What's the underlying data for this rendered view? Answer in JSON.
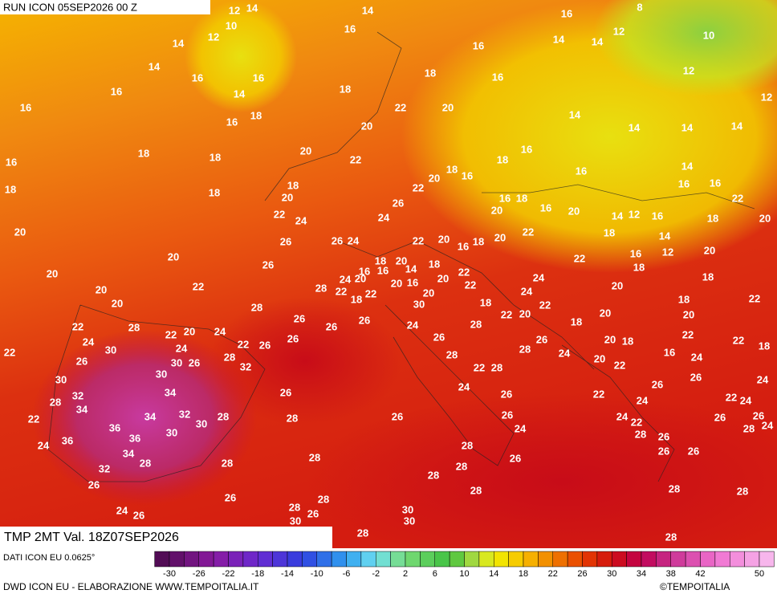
{
  "header": {
    "run": "RUN ICON 05SEP2026 00 Z",
    "field": "TMP 2MT Val. 18Z07SEP2026"
  },
  "footer": {
    "source": "DATI ICON EU 0.0625°",
    "credit": "DWD ICON EU - ELABORAZIONE WWW.TEMPOITALIA.IT",
    "copyright": "©TEMPOITALIA"
  },
  "colorbar": {
    "ticks": [
      -30,
      -26,
      -22,
      -18,
      -14,
      -10,
      -6,
      -2,
      2,
      6,
      10,
      14,
      18,
      22,
      26,
      30,
      34,
      38,
      42,
      50
    ]
  },
  "map": {
    "labels": [
      12,
      14,
      10,
      14,
      16,
      8,
      16,
      10,
      12,
      14,
      12,
      14,
      14,
      16,
      14,
      16,
      16,
      18,
      16,
      12,
      16,
      14,
      18,
      16,
      22,
      20,
      14,
      12,
      16,
      18,
      20,
      14,
      14,
      14,
      18,
      18,
      20,
      16,
      18,
      16,
      22,
      16,
      14,
      18,
      18,
      18,
      18,
      16,
      20,
      22,
      16,
      16,
      20,
      16,
      18,
      22,
      26,
      22,
      24,
      24,
      20,
      16,
      20,
      14,
      12,
      16,
      18,
      20,
      20,
      26,
      26,
      24,
      22,
      20,
      16,
      18,
      20,
      22,
      18,
      14,
      20,
      26,
      18,
      20,
      18,
      16,
      16,
      14,
      22,
      16,
      12,
      20,
      20,
      18,
      22,
      20,
      28,
      24,
      20,
      20,
      22,
      24,
      22,
      18,
      22,
      20,
      16,
      20,
      22,
      24,
      20,
      18,
      20,
      28,
      30,
      18,
      22,
      20,
      22,
      20,
      18,
      22,
      22,
      28,
      22,
      20,
      24,
      26,
      26,
      26,
      24,
      28,
      18,
      20,
      24,
      24,
      22,
      22,
      26,
      26,
      26,
      28,
      26,
      20,
      18,
      22,
      22,
      18,
      26,
      30,
      30,
      26,
      28,
      32,
      24,
      20,
      22,
      16,
      24,
      30,
      30,
      28,
      22,
      28,
      26,
      24,
      26,
      28,
      32,
      34,
      26,
      24,
      26,
      22,
      24,
      22,
      24,
      34,
      32,
      22,
      34,
      28,
      28,
      26,
      26,
      24,
      26,
      26,
      36,
      36,
      30,
      30,
      24,
      22,
      28,
      24,
      24,
      36,
      34,
      28,
      26,
      28,
      26,
      26,
      32,
      28,
      28,
      28,
      26,
      28,
      28,
      26,
      28,
      28,
      28,
      26,
      24,
      26,
      28,
      28,
      26,
      30,
      30,
      30,
      28,
      28
    ]
  }
}
